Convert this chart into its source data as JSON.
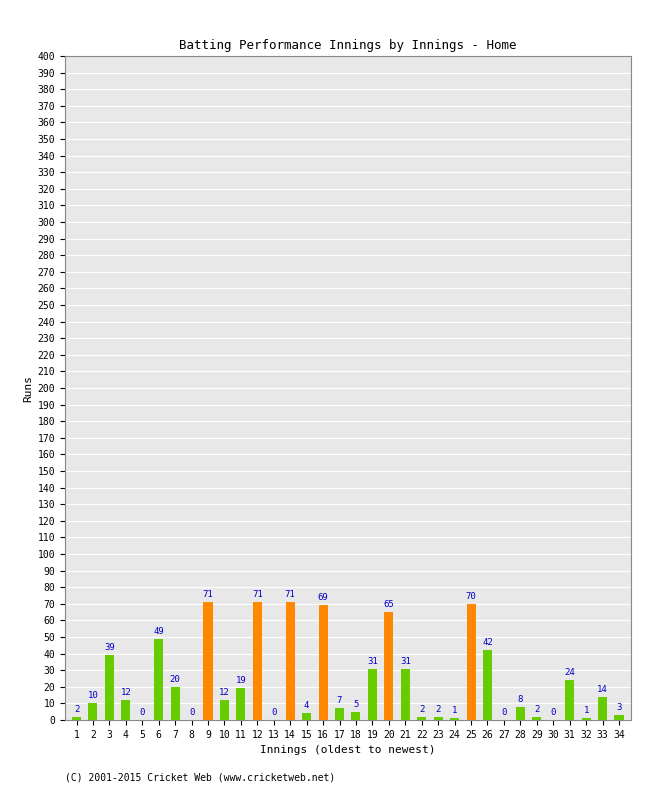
{
  "title": "Batting Performance Innings by Innings - Home",
  "xlabel": "Innings (oldest to newest)",
  "ylabel": "Runs",
  "background_color": "#ffffff",
  "plot_bg_color": "#e8e8e8",
  "innings": [
    1,
    2,
    3,
    4,
    5,
    6,
    7,
    8,
    9,
    10,
    11,
    12,
    13,
    14,
    15,
    16,
    17,
    18,
    19,
    20,
    21,
    22,
    23,
    24,
    25,
    26,
    27,
    28,
    29,
    30,
    31,
    32,
    33,
    34
  ],
  "values": [
    2,
    10,
    39,
    12,
    0,
    49,
    20,
    0,
    71,
    12,
    19,
    71,
    0,
    71,
    4,
    69,
    7,
    5,
    31,
    65,
    31,
    2,
    2,
    1,
    70,
    42,
    0,
    8,
    2,
    0,
    24,
    1,
    14,
    3
  ],
  "colors": [
    "#66cc00",
    "#66cc00",
    "#66cc00",
    "#66cc00",
    "#66cc00",
    "#66cc00",
    "#66cc00",
    "#66cc00",
    "#ff8800",
    "#66cc00",
    "#66cc00",
    "#ff8800",
    "#66cc00",
    "#ff8800",
    "#66cc00",
    "#ff8800",
    "#66cc00",
    "#66cc00",
    "#66cc00",
    "#ff8800",
    "#66cc00",
    "#66cc00",
    "#66cc00",
    "#66cc00",
    "#ff8800",
    "#66cc00",
    "#66cc00",
    "#66cc00",
    "#66cc00",
    "#66cc00",
    "#66cc00",
    "#66cc00",
    "#66cc00",
    "#66cc00"
  ],
  "ylim": [
    0,
    400
  ],
  "label_color": "#0000cc",
  "label_fontsize": 6.5,
  "axis_label_fontsize": 8,
  "tick_fontsize": 7,
  "copyright": "(C) 2001-2015 Cricket Web (www.cricketweb.net)"
}
